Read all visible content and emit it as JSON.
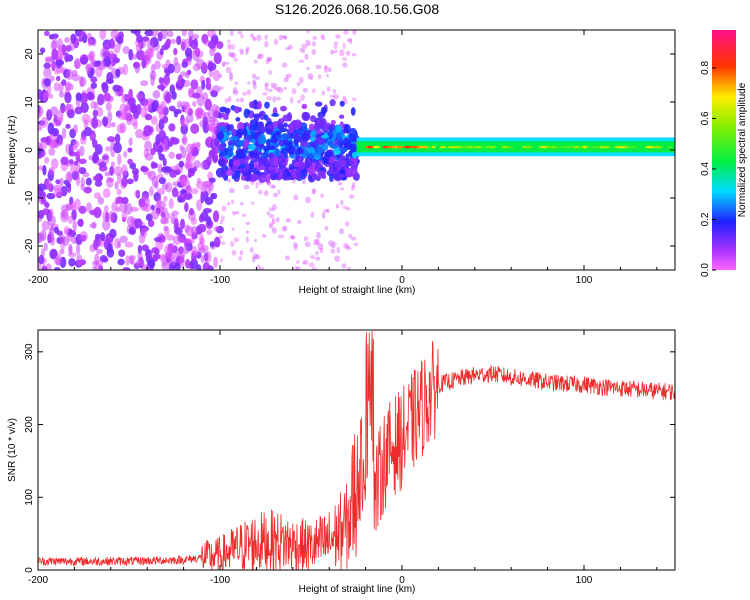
{
  "title": "S126.2026.068.10.56.G08",
  "colors": {
    "line": "#ee2b2b",
    "axis": "#000000",
    "background": "#ffffff"
  },
  "chart_data": [
    {
      "type": "heatmap",
      "xlabel": "Height of straight line (km)",
      "ylabel": "Frequency (Hz)",
      "xlim": [
        -200,
        150
      ],
      "ylim": [
        -25,
        25
      ],
      "x_ticks": [
        -200,
        -100,
        0,
        100
      ],
      "y_ticks": [
        -20,
        -10,
        0,
        10,
        20
      ],
      "colorbar": {
        "label": "Normalized spectral amplitude",
        "range": [
          0.0,
          0.95
        ],
        "ticks": [
          0.0,
          0.2,
          0.4,
          0.6,
          0.8
        ],
        "colormap": "hsv (magenta-blue-cyan-green-yellow-red-pink)"
      },
      "regions": [
        {
          "x_range": [
            -200,
            -100
          ],
          "freq_range": [
            -25,
            25
          ],
          "amplitude": "0.05-0.2",
          "pattern": "scattered blobs"
        },
        {
          "x_range": [
            -100,
            -25
          ],
          "freq_range": [
            -5,
            10
          ],
          "amplitude": "0.1-0.35",
          "pattern": "dense scattered cluster"
        },
        {
          "x_range": [
            -25,
            150
          ],
          "freq_range": [
            -1,
            2
          ],
          "amplitude": "0.3-0.9",
          "pattern": "narrow carrier band near 0 Hz"
        }
      ]
    },
    {
      "type": "line",
      "xlabel": "Height of straight line (km)",
      "ylabel": "SNR (10 * v/v)",
      "xlim": [
        -200,
        150
      ],
      "ylim": [
        0,
        330
      ],
      "x_ticks": [
        -200,
        -100,
        0,
        100
      ],
      "y_ticks": [
        0,
        100,
        200,
        300
      ],
      "x": [
        -200,
        -150,
        -120,
        -100,
        -90,
        -80,
        -70,
        -60,
        -50,
        -40,
        -30,
        -25,
        -20,
        -17,
        -15,
        -10,
        -5,
        0,
        5,
        10,
        15,
        20,
        30,
        40,
        50,
        60,
        70,
        80,
        90,
        100,
        110,
        120,
        130,
        140,
        150
      ],
      "y": [
        12,
        12,
        14,
        20,
        30,
        38,
        40,
        35,
        32,
        40,
        60,
        120,
        160,
        200,
        100,
        150,
        170,
        180,
        200,
        220,
        240,
        255,
        262,
        268,
        270,
        265,
        262,
        258,
        256,
        255,
        252,
        250,
        248,
        246,
        245
      ]
    }
  ]
}
